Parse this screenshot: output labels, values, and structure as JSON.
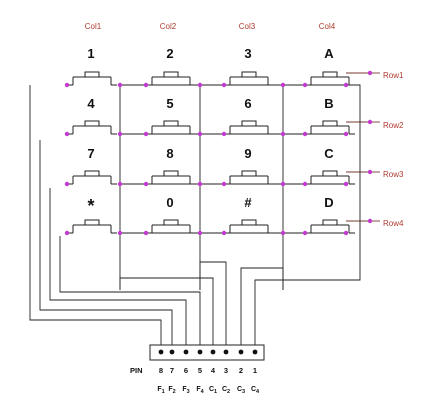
{
  "columns": [
    "Col1",
    "Col2",
    "Col3",
    "Col4"
  ],
  "rows": [
    "Row1",
    "Row2",
    "Row3",
    "Row4"
  ],
  "keys": [
    [
      "1",
      "2",
      "3",
      "A"
    ],
    [
      "4",
      "5",
      "6",
      "B"
    ],
    [
      "7",
      "8",
      "9",
      "C"
    ],
    [
      "*",
      "0",
      "#",
      "D"
    ]
  ],
  "connector": {
    "pin_label": "PIN",
    "pin_numbers": [
      "8",
      "7",
      "6",
      "5",
      "4",
      "3",
      "2",
      "1"
    ],
    "signals": [
      {
        "letter": "F",
        "index": "1"
      },
      {
        "letter": "F",
        "index": "2"
      },
      {
        "letter": "F",
        "index": "3"
      },
      {
        "letter": "F",
        "index": "4"
      },
      {
        "letter": "C",
        "index": "1"
      },
      {
        "letter": "C",
        "index": "2"
      },
      {
        "letter": "C",
        "index": "3"
      },
      {
        "letter": "C",
        "index": "4"
      }
    ]
  },
  "colors": {
    "wire": "#222222",
    "node_dot": "#c23ad0",
    "label_red": "#b03a2e"
  }
}
